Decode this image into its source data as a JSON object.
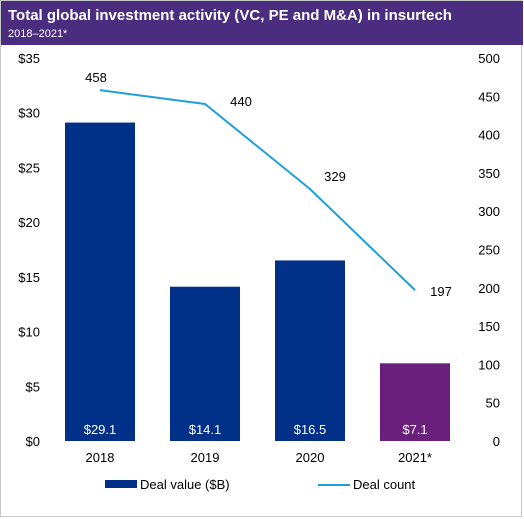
{
  "header": {
    "title": "Total global investment activity (VC, PE and M&A) in insurtech",
    "subtitle": "2018–2021*"
  },
  "chart_data": {
    "type": "bar",
    "categories": [
      "2018",
      "2019",
      "2020",
      "2021*"
    ],
    "series": [
      {
        "name": "Deal value ($B)",
        "kind": "bar",
        "axis": "left",
        "values": [
          29.1,
          14.1,
          16.5,
          7.1
        ],
        "labels": [
          "$29.1",
          "$14.1",
          "$16.5",
          "$7.1"
        ],
        "colors": [
          "#003087",
          "#003087",
          "#003087",
          "#6b1f7c"
        ]
      },
      {
        "name": "Deal count",
        "kind": "line",
        "axis": "right",
        "values": [
          458,
          440,
          329,
          197
        ],
        "labels": [
          "458",
          "440",
          "329",
          "197"
        ],
        "color": "#1ea0dc"
      }
    ],
    "left_axis": {
      "ylim": [
        0,
        35
      ],
      "ticks": [
        0,
        5,
        10,
        15,
        20,
        25,
        30,
        35
      ],
      "tick_labels": [
        "$0",
        "$5",
        "$10",
        "$15",
        "$20",
        "$25",
        "$30",
        "$35"
      ]
    },
    "right_axis": {
      "ylim": [
        0,
        500
      ],
      "ticks": [
        0,
        50,
        100,
        150,
        200,
        250,
        300,
        350,
        400,
        450,
        500
      ],
      "tick_labels": [
        "0",
        "50",
        "100",
        "150",
        "200",
        "250",
        "300",
        "350",
        "400",
        "450",
        "500"
      ]
    },
    "legend_position": "bottom",
    "grid": false
  }
}
